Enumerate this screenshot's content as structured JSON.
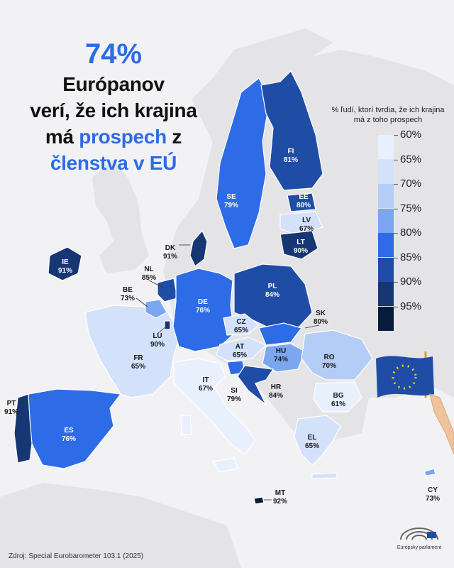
{
  "headline": {
    "percent": "74%",
    "line1": "Európanov",
    "line2": "verí, že ich krajina",
    "line3_prefix": "má",
    "line3_highlight": "prospech",
    "line3_suffix": "z",
    "line4": "členstva v EÚ"
  },
  "legend": {
    "title": "% ľudí, ktorí tvrdia, že ich krajina má z toho prospech",
    "levels": [
      {
        "label": "60%",
        "color": "#e9f0fd"
      },
      {
        "label": "65%",
        "color": "#d3e1fa"
      },
      {
        "label": "70%",
        "color": "#b4cdf6"
      },
      {
        "label": "75%",
        "color": "#7aa7ef"
      },
      {
        "label": "80%",
        "color": "#2e6be6"
      },
      {
        "label": "85%",
        "color": "#1f4da6"
      },
      {
        "label": "90%",
        "color": "#163674"
      },
      {
        "label": "95%",
        "color": "#0a1a3a"
      }
    ]
  },
  "countries": [
    {
      "code": "FI",
      "value": "81%"
    },
    {
      "code": "SE",
      "value": "79%"
    },
    {
      "code": "EE",
      "value": "80%"
    },
    {
      "code": "LV",
      "value": "67%"
    },
    {
      "code": "LT",
      "value": "90%"
    },
    {
      "code": "DK",
      "value": "91%"
    },
    {
      "code": "IE",
      "value": "91%"
    },
    {
      "code": "NL",
      "value": "85%"
    },
    {
      "code": "BE",
      "value": "73%"
    },
    {
      "code": "LU",
      "value": "90%"
    },
    {
      "code": "DE",
      "value": "76%"
    },
    {
      "code": "PL",
      "value": "84%"
    },
    {
      "code": "CZ",
      "value": "65%"
    },
    {
      "code": "SK",
      "value": "80%"
    },
    {
      "code": "AT",
      "value": "65%"
    },
    {
      "code": "HU",
      "value": "74%"
    },
    {
      "code": "RO",
      "value": "70%"
    },
    {
      "code": "FR",
      "value": "65%"
    },
    {
      "code": "IT",
      "value": "67%"
    },
    {
      "code": "SI",
      "value": "79%"
    },
    {
      "code": "HR",
      "value": "84%"
    },
    {
      "code": "BG",
      "value": "61%"
    },
    {
      "code": "PT",
      "value": "91%"
    },
    {
      "code": "ES",
      "value": "76%"
    },
    {
      "code": "EL",
      "value": "65%"
    },
    {
      "code": "MT",
      "value": "92%"
    },
    {
      "code": "CY",
      "value": "73%"
    }
  ],
  "source": "Zdroj: Special Eurobarometer 103.1 (2025)",
  "logo_text": "Európsky parlament"
}
